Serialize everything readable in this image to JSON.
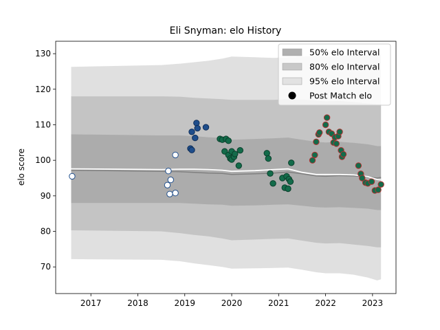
{
  "chart_data": {
    "type": "scatter",
    "title": "Eli Snyman: elo History",
    "xlabel": "",
    "ylabel": "elo score",
    "xlim": [
      2016.25,
      2023.5
    ],
    "ylim": [
      62.5,
      133.5
    ],
    "xticks": [
      2017,
      2018,
      2019,
      2020,
      2021,
      2022,
      2023
    ],
    "yticks": [
      70,
      80,
      90,
      100,
      110,
      120,
      130
    ],
    "grid": false,
    "legend_position": "top-right",
    "legend": [
      {
        "label": "50% elo Interval",
        "kind": "patch",
        "color": "#b0b0b0"
      },
      {
        "label": "80% elo Interval",
        "kind": "patch",
        "color": "#c8c8c8"
      },
      {
        "label": "95% elo Interval",
        "kind": "patch",
        "color": "#e2e2e2"
      },
      {
        "label": "Post Match elo",
        "kind": "marker",
        "color": "#000000"
      }
    ],
    "bands": {
      "x": [
        2016.58,
        2018.5,
        2018.9,
        2019.2,
        2019.5,
        2019.8,
        2020.0,
        2020.5,
        2020.9,
        2021.2,
        2021.5,
        2021.8,
        2022.0,
        2022.3,
        2022.6,
        2022.9,
        2023.1,
        2023.18
      ],
      "median": [
        97.2,
        96.9,
        96.8,
        96.6,
        96.4,
        96.3,
        96.0,
        96.2,
        96.4,
        96.7,
        96.2,
        95.6,
        95.5,
        95.7,
        95.6,
        95.3,
        95.0,
        95.2
      ],
      "mean": [
        97.6,
        97.4,
        97.5,
        97.5,
        97.4,
        97.2,
        96.9,
        97.1,
        97.4,
        97.6,
        96.6,
        96.0,
        96.0,
        96.0,
        95.9,
        95.4,
        94.6,
        94.5
      ],
      "p50": {
        "lower": [
          88,
          88,
          88,
          87.8,
          87.6,
          87.5,
          87.2,
          87.3,
          87.5,
          87.6,
          87.2,
          86.8,
          86.7,
          86.8,
          86.6,
          86.4,
          86.0,
          86.0
        ],
        "upper": [
          107.3,
          107.0,
          107.0,
          106.8,
          106.5,
          106.3,
          105.8,
          106.0,
          106.2,
          106.4,
          105.8,
          105.2,
          105.0,
          105.2,
          104.9,
          104.5,
          104.0,
          104.0
        ]
      },
      "p80": {
        "lower": [
          80.3,
          80.0,
          79.5,
          79.0,
          78.6,
          78.0,
          77.5,
          77.7,
          77.9,
          78.0,
          77.4,
          76.8,
          76.6,
          76.7,
          76.3,
          75.9,
          75.5,
          75.5
        ],
        "upper": [
          118.0,
          118.0,
          117.9,
          117.6,
          117.4,
          117.2,
          117.0,
          117.0,
          117.0,
          117.2,
          117.1,
          116.8,
          116.6,
          116.7,
          116.4,
          116.0,
          115.8,
          115.8
        ]
      },
      "p95": {
        "lower": [
          72.2,
          72.0,
          71.6,
          71.0,
          70.5,
          70.0,
          69.5,
          69.6,
          69.7,
          69.8,
          69.2,
          68.5,
          68.2,
          68.2,
          67.8,
          67.0,
          66.2,
          66.5
        ],
        "upper": [
          126.3,
          126.8,
          127.2,
          127.6,
          128.0,
          128.6,
          129.2,
          129.0,
          128.8,
          129.0,
          129.2,
          129.4,
          129.2,
          129.4,
          129.5,
          129.6,
          129.8,
          129.8
        ]
      }
    },
    "series": [
      {
        "fill": "#ffffff",
        "edge": "#1f4e8c",
        "points": [
          [
            2016.6,
            95.5
          ],
          [
            2018.65,
            97.0
          ],
          [
            2018.63,
            93.0
          ],
          [
            2018.7,
            94.5
          ],
          [
            2018.68,
            90.5
          ],
          [
            2018.8,
            90.8
          ],
          [
            2018.8,
            101.5
          ]
        ]
      },
      {
        "fill": "#1f4e8c",
        "edge": "#0f2e58",
        "points": [
          [
            2019.12,
            103.3
          ],
          [
            2019.15,
            102.9
          ],
          [
            2019.15,
            108.0
          ],
          [
            2019.22,
            106.3
          ],
          [
            2019.25,
            110.5
          ],
          [
            2019.27,
            109.0
          ],
          [
            2019.45,
            109.3
          ]
        ]
      },
      {
        "fill": "#136b4a",
        "edge": "#0a3f2b",
        "points": [
          [
            2019.75,
            106.0
          ],
          [
            2019.8,
            105.8
          ],
          [
            2019.85,
            102.5
          ],
          [
            2019.88,
            106.0
          ],
          [
            2019.93,
            101.5
          ],
          [
            2019.93,
            105.5
          ],
          [
            2019.97,
            100.5
          ],
          [
            2020.0,
            102.5
          ],
          [
            2020.0,
            100.2
          ],
          [
            2020.05,
            101.0
          ],
          [
            2020.07,
            101.8
          ],
          [
            2020.15,
            98.5
          ],
          [
            2020.18,
            102.8
          ],
          [
            2020.75,
            102.0
          ],
          [
            2020.78,
            100.5
          ],
          [
            2020.82,
            96.3
          ],
          [
            2020.88,
            93.5
          ],
          [
            2021.08,
            95.0
          ],
          [
            2021.13,
            92.3
          ],
          [
            2021.17,
            95.5
          ],
          [
            2021.2,
            92.0
          ],
          [
            2021.22,
            94.7
          ],
          [
            2021.25,
            94.0
          ],
          [
            2021.27,
            99.3
          ]
        ]
      },
      {
        "fill": "#136b4a",
        "edge": "#b03030",
        "points": [
          [
            2021.72,
            100.0
          ],
          [
            2021.77,
            101.5
          ],
          [
            2021.8,
            105.2
          ],
          [
            2021.85,
            107.3
          ],
          [
            2021.87,
            107.8
          ],
          [
            2022.0,
            110.0
          ],
          [
            2022.03,
            112.0
          ],
          [
            2022.07,
            108.0
          ],
          [
            2022.13,
            107.5
          ],
          [
            2022.17,
            105.0
          ],
          [
            2022.2,
            106.5
          ],
          [
            2022.23,
            104.7
          ],
          [
            2022.27,
            106.8
          ],
          [
            2022.3,
            108.0
          ],
          [
            2022.33,
            102.8
          ],
          [
            2022.35,
            101.0
          ],
          [
            2022.38,
            101.7
          ],
          [
            2022.7,
            98.5
          ],
          [
            2022.75,
            96.2
          ],
          [
            2022.78,
            95.0
          ],
          [
            2022.85,
            93.7
          ],
          [
            2022.9,
            93.5
          ],
          [
            2022.98,
            94.0
          ],
          [
            2023.05,
            91.5
          ],
          [
            2023.12,
            91.7
          ],
          [
            2023.18,
            93.2
          ]
        ]
      }
    ]
  }
}
